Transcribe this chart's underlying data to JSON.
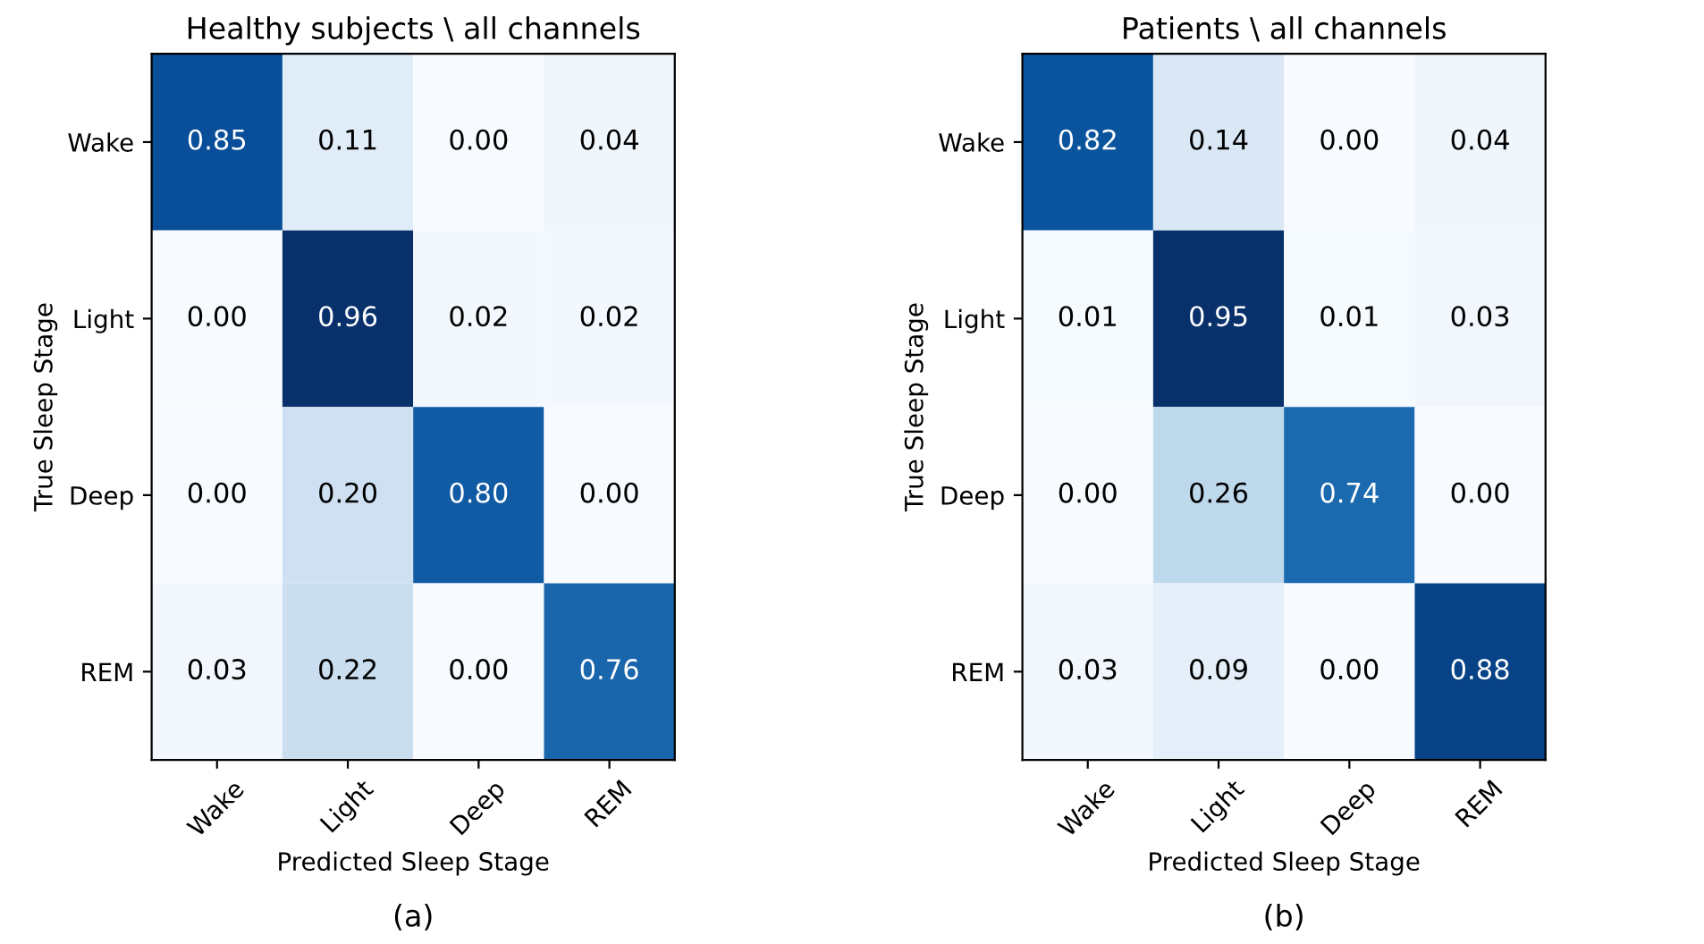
{
  "chart_data": [
    {
      "type": "heatmap",
      "title": "Healthy subjects \\ all channels",
      "xlabel": "Predicted Sleep Stage",
      "ylabel": "True Sleep Stage",
      "categories": [
        "Wake",
        "Light",
        "Deep",
        "REM"
      ],
      "y_categories": [
        "Wake",
        "Light",
        "Deep",
        "REM"
      ],
      "cells": [
        [
          0.85,
          0.11,
          0.0,
          0.04
        ],
        [
          0.0,
          0.96,
          0.02,
          0.02
        ],
        [
          0.0,
          0.2,
          0.8,
          0.0
        ],
        [
          0.03,
          0.22,
          0.0,
          0.76
        ]
      ],
      "cell_labels": [
        [
          "0.85",
          "0.11",
          "0.00",
          "0.04"
        ],
        [
          "0.00",
          "0.96",
          "0.02",
          "0.02"
        ],
        [
          "0.00",
          "0.20",
          "0.80",
          "0.00"
        ],
        [
          "0.03",
          "0.22",
          "0.00",
          "0.76"
        ]
      ],
      "annotations": [
        "(a)"
      ]
    },
    {
      "type": "heatmap",
      "title": "Patients \\ all channels",
      "xlabel": "Predicted Sleep Stage",
      "ylabel": "True Sleep Stage",
      "categories": [
        "Wake",
        "Light",
        "Deep",
        "REM"
      ],
      "y_categories": [
        "Wake",
        "Light",
        "Deep",
        "REM"
      ],
      "cells": [
        [
          0.82,
          0.14,
          0.0,
          0.04
        ],
        [
          0.01,
          0.95,
          0.01,
          0.03
        ],
        [
          0.0,
          0.26,
          0.74,
          0.0
        ],
        [
          0.03,
          0.09,
          0.0,
          0.88
        ]
      ],
      "cell_labels": [
        [
          "0.82",
          "0.14",
          "0.00",
          "0.04"
        ],
        [
          "0.01",
          "0.95",
          "0.01",
          "0.03"
        ],
        [
          "0.00",
          "0.26",
          "0.74",
          "0.00"
        ],
        [
          "0.03",
          "0.09",
          "0.00",
          "0.88"
        ]
      ],
      "annotations": [
        "(b)"
      ]
    }
  ]
}
